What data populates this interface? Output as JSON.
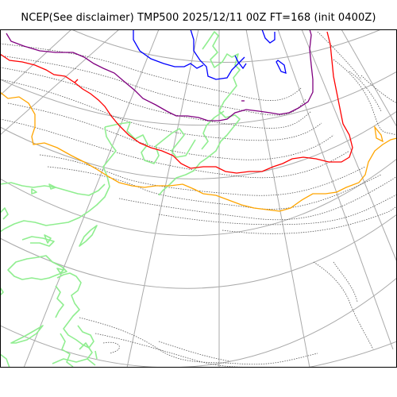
{
  "title": "NCEP(See disclaimer) TMP500 2025/12/11 00Z FT=168 (init 0400Z)",
  "colors": {
    "background": "#ffffff",
    "frame": "#000000",
    "graticule": "#aaaaaa",
    "isotherm_dotted": "#555555",
    "coastline": "#90ee90",
    "contour_blue": "#0000ff",
    "contour_purple": "#800080",
    "contour_red": "#ff0000",
    "contour_orange": "#ffa500"
  },
  "layers": [
    {
      "id": "graticule",
      "name": "lat-lon grid"
    },
    {
      "id": "isotherms",
      "name": "dotted temperature contours"
    },
    {
      "id": "coastline",
      "name": "land outline"
    },
    {
      "id": "contour-blue",
      "name": "blue isotherm"
    },
    {
      "id": "contour-purple",
      "name": "purple isotherm"
    },
    {
      "id": "contour-red",
      "name": "red isotherm"
    },
    {
      "id": "contour-orange",
      "name": "orange isotherm"
    }
  ]
}
